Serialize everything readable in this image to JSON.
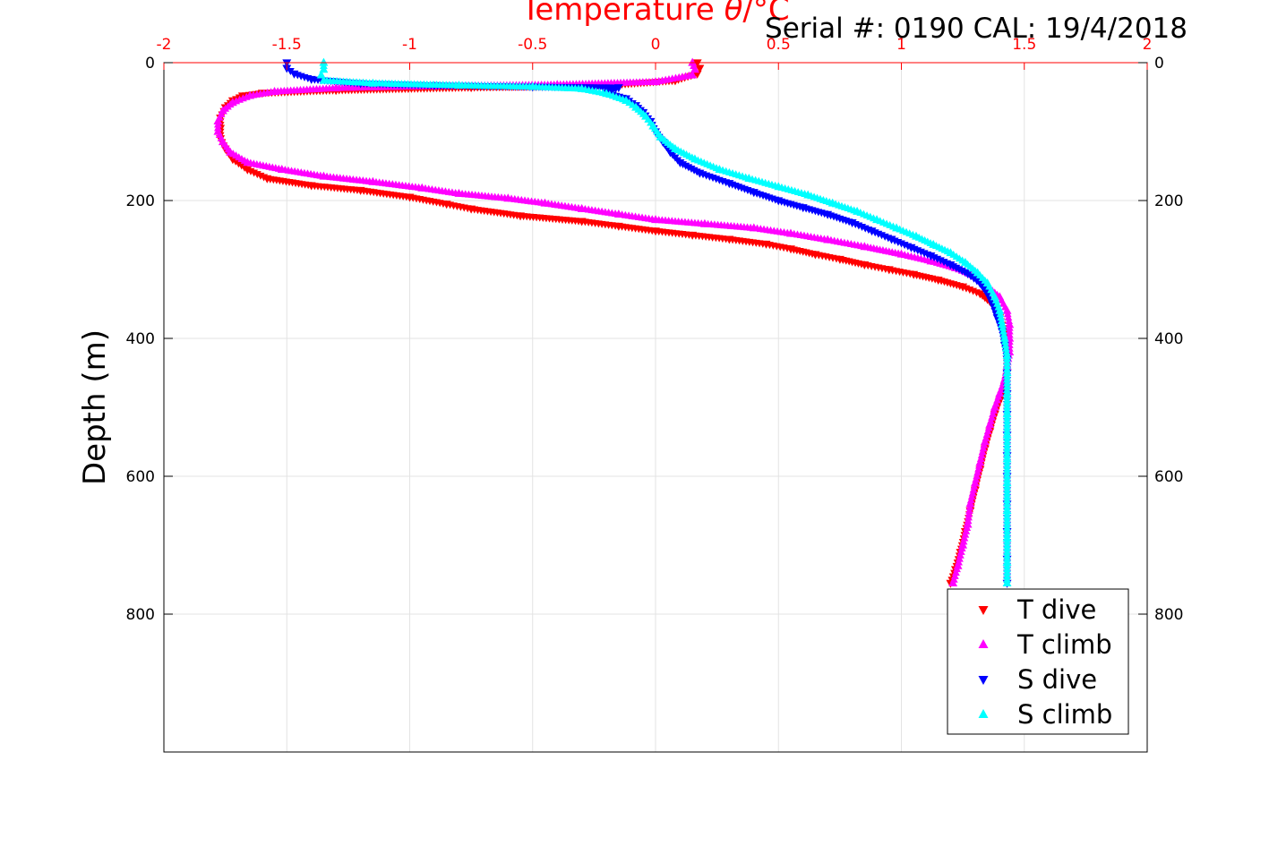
{
  "chart_data": {
    "type": "scatter",
    "title": "Serial #: 0190  CAL: 19/4/2018",
    "xlabel_prefix": "Temperature ",
    "xlabel_symbol": "θ",
    "xlabel_suffix": "/°C",
    "ylabel": "Depth (m)",
    "xlim": [
      -2,
      2
    ],
    "ylim": [
      0,
      1000
    ],
    "y_reversed": true,
    "grid": true,
    "legend_position": "bottom-right",
    "x_ticks": [
      -2,
      -1.5,
      -1,
      -0.5,
      0,
      0.5,
      1,
      1.5,
      2
    ],
    "x_tick_labels": [
      "-2",
      "-1.5",
      "-1",
      "-0.5",
      "0",
      "0.5",
      "1",
      "1.5",
      "2"
    ],
    "y_ticks": [
      0,
      200,
      400,
      600,
      800
    ],
    "y_tick_labels": [
      "0",
      "200",
      "400",
      "600",
      "800"
    ],
    "series": [
      {
        "name": "T dive",
        "marker": "triangle-down",
        "color": "#ff0000",
        "points": [
          [
            0.17,
            0
          ],
          [
            0.18,
            8
          ],
          [
            0.17,
            16
          ],
          [
            0.08,
            26
          ],
          [
            -0.2,
            33
          ],
          [
            -0.75,
            36
          ],
          [
            -1.3,
            40
          ],
          [
            -1.6,
            44
          ],
          [
            -1.68,
            48
          ],
          [
            -1.72,
            55
          ],
          [
            -1.75,
            65
          ],
          [
            -1.77,
            80
          ],
          [
            -1.77,
            95
          ],
          [
            -1.77,
            110
          ],
          [
            -1.75,
            125
          ],
          [
            -1.72,
            140
          ],
          [
            -1.66,
            155
          ],
          [
            -1.58,
            168
          ],
          [
            -1.4,
            178
          ],
          [
            -1.2,
            185
          ],
          [
            -1.0,
            195
          ],
          [
            -0.85,
            205
          ],
          [
            -0.75,
            212
          ],
          [
            -0.55,
            222
          ],
          [
            -0.3,
            230
          ],
          [
            -0.15,
            237
          ],
          [
            0.0,
            244
          ],
          [
            0.15,
            250
          ],
          [
            0.3,
            256
          ],
          [
            0.45,
            263
          ],
          [
            0.55,
            270
          ],
          [
            0.65,
            278
          ],
          [
            0.75,
            285
          ],
          [
            0.85,
            293
          ],
          [
            0.95,
            300
          ],
          [
            1.05,
            307
          ],
          [
            1.15,
            315
          ],
          [
            1.25,
            325
          ],
          [
            1.32,
            335
          ],
          [
            1.37,
            350
          ],
          [
            1.4,
            370
          ],
          [
            1.42,
            390
          ],
          [
            1.43,
            410
          ],
          [
            1.43,
            430
          ],
          [
            1.43,
            450
          ],
          [
            1.42,
            470
          ],
          [
            1.4,
            490
          ],
          [
            1.38,
            510
          ],
          [
            1.36,
            535
          ],
          [
            1.34,
            560
          ],
          [
            1.32,
            590
          ],
          [
            1.3,
            620
          ],
          [
            1.28,
            650
          ],
          [
            1.26,
            680
          ],
          [
            1.24,
            710
          ],
          [
            1.22,
            735
          ],
          [
            1.2,
            755
          ]
        ]
      },
      {
        "name": "T climb",
        "marker": "triangle-up",
        "color": "#ff00ff",
        "points": [
          [
            0.15,
            0
          ],
          [
            0.16,
            10
          ],
          [
            0.15,
            18
          ],
          [
            0.0,
            28
          ],
          [
            -0.4,
            32
          ],
          [
            -0.9,
            34
          ],
          [
            -1.3,
            37
          ],
          [
            -1.55,
            42
          ],
          [
            -1.65,
            48
          ],
          [
            -1.72,
            58
          ],
          [
            -1.76,
            70
          ],
          [
            -1.78,
            85
          ],
          [
            -1.78,
            100
          ],
          [
            -1.76,
            115
          ],
          [
            -1.73,
            130
          ],
          [
            -1.66,
            145
          ],
          [
            -1.52,
            155
          ],
          [
            -1.35,
            165
          ],
          [
            -1.15,
            173
          ],
          [
            -0.95,
            182
          ],
          [
            -0.8,
            190
          ],
          [
            -0.6,
            197
          ],
          [
            -0.45,
            204
          ],
          [
            -0.3,
            212
          ],
          [
            -0.15,
            220
          ],
          [
            0.0,
            228
          ],
          [
            0.2,
            234
          ],
          [
            0.4,
            240
          ],
          [
            0.55,
            248
          ],
          [
            0.7,
            257
          ],
          [
            0.85,
            267
          ],
          [
            1.0,
            278
          ],
          [
            1.12,
            288
          ],
          [
            1.22,
            298
          ],
          [
            1.3,
            310
          ],
          [
            1.35,
            325
          ],
          [
            1.4,
            340
          ],
          [
            1.43,
            360
          ],
          [
            1.44,
            380
          ],
          [
            1.44,
            400
          ],
          [
            1.44,
            420
          ],
          [
            1.43,
            440
          ],
          [
            1.42,
            460
          ],
          [
            1.4,
            480
          ],
          [
            1.38,
            500
          ],
          [
            1.36,
            525
          ],
          [
            1.34,
            550
          ],
          [
            1.32,
            580
          ],
          [
            1.3,
            610
          ],
          [
            1.28,
            640
          ],
          [
            1.27,
            670
          ],
          [
            1.25,
            700
          ],
          [
            1.23,
            730
          ],
          [
            1.21,
            755
          ]
        ]
      },
      {
        "name": "S dive",
        "marker": "triangle-down",
        "color": "#0000ff",
        "points": [
          [
            -1.5,
            0
          ],
          [
            -1.5,
            8
          ],
          [
            -1.47,
            16
          ],
          [
            -1.4,
            24
          ],
          [
            -1.2,
            30
          ],
          [
            -0.9,
            33
          ],
          [
            -0.5,
            35
          ],
          [
            -0.15,
            36
          ],
          [
            -0.2,
            44
          ],
          [
            -0.12,
            52
          ],
          [
            -0.08,
            62
          ],
          [
            -0.05,
            72
          ],
          [
            -0.02,
            85
          ],
          [
            0.0,
            100
          ],
          [
            0.03,
            115
          ],
          [
            0.06,
            130
          ],
          [
            0.1,
            145
          ],
          [
            0.18,
            160
          ],
          [
            0.3,
            175
          ],
          [
            0.4,
            188
          ],
          [
            0.5,
            200
          ],
          [
            0.6,
            210
          ],
          [
            0.7,
            220
          ],
          [
            0.8,
            232
          ],
          [
            0.88,
            244
          ],
          [
            0.96,
            256
          ],
          [
            1.04,
            268
          ],
          [
            1.12,
            280
          ],
          [
            1.2,
            293
          ],
          [
            1.27,
            306
          ],
          [
            1.32,
            320
          ],
          [
            1.35,
            335
          ],
          [
            1.37,
            350
          ],
          [
            1.39,
            370
          ],
          [
            1.41,
            390
          ],
          [
            1.42,
            410
          ],
          [
            1.43,
            430
          ],
          [
            1.43,
            450
          ],
          [
            1.43,
            480
          ],
          [
            1.43,
            510
          ],
          [
            1.43,
            540
          ],
          [
            1.43,
            570
          ],
          [
            1.43,
            600
          ],
          [
            1.43,
            640
          ],
          [
            1.43,
            680
          ],
          [
            1.43,
            720
          ],
          [
            1.43,
            755
          ]
        ]
      },
      {
        "name": "S climb",
        "marker": "triangle-up",
        "color": "#00ffff",
        "points": [
          [
            -1.35,
            0
          ],
          [
            -1.35,
            10
          ],
          [
            -1.36,
            18
          ],
          [
            -1.35,
            26
          ],
          [
            -1.15,
            30
          ],
          [
            -0.8,
            33
          ],
          [
            -0.5,
            35
          ],
          [
            -0.3,
            38
          ],
          [
            -0.2,
            45
          ],
          [
            -0.12,
            55
          ],
          [
            -0.08,
            65
          ],
          [
            -0.04,
            78
          ],
          [
            -0.01,
            92
          ],
          [
            0.02,
            108
          ],
          [
            0.08,
            125
          ],
          [
            0.16,
            140
          ],
          [
            0.26,
            155
          ],
          [
            0.38,
            168
          ],
          [
            0.5,
            180
          ],
          [
            0.62,
            192
          ],
          [
            0.72,
            204
          ],
          [
            0.82,
            216
          ],
          [
            0.9,
            228
          ],
          [
            0.98,
            240
          ],
          [
            1.06,
            252
          ],
          [
            1.13,
            264
          ],
          [
            1.2,
            276
          ],
          [
            1.26,
            290
          ],
          [
            1.31,
            305
          ],
          [
            1.35,
            320
          ],
          [
            1.38,
            340
          ],
          [
            1.4,
            360
          ],
          [
            1.41,
            380
          ],
          [
            1.42,
            400
          ],
          [
            1.43,
            425
          ],
          [
            1.43,
            450
          ],
          [
            1.43,
            480
          ],
          [
            1.43,
            510
          ],
          [
            1.43,
            540
          ],
          [
            1.43,
            575
          ],
          [
            1.43,
            610
          ],
          [
            1.43,
            650
          ],
          [
            1.43,
            690
          ],
          [
            1.43,
            725
          ],
          [
            1.43,
            755
          ]
        ]
      }
    ]
  }
}
